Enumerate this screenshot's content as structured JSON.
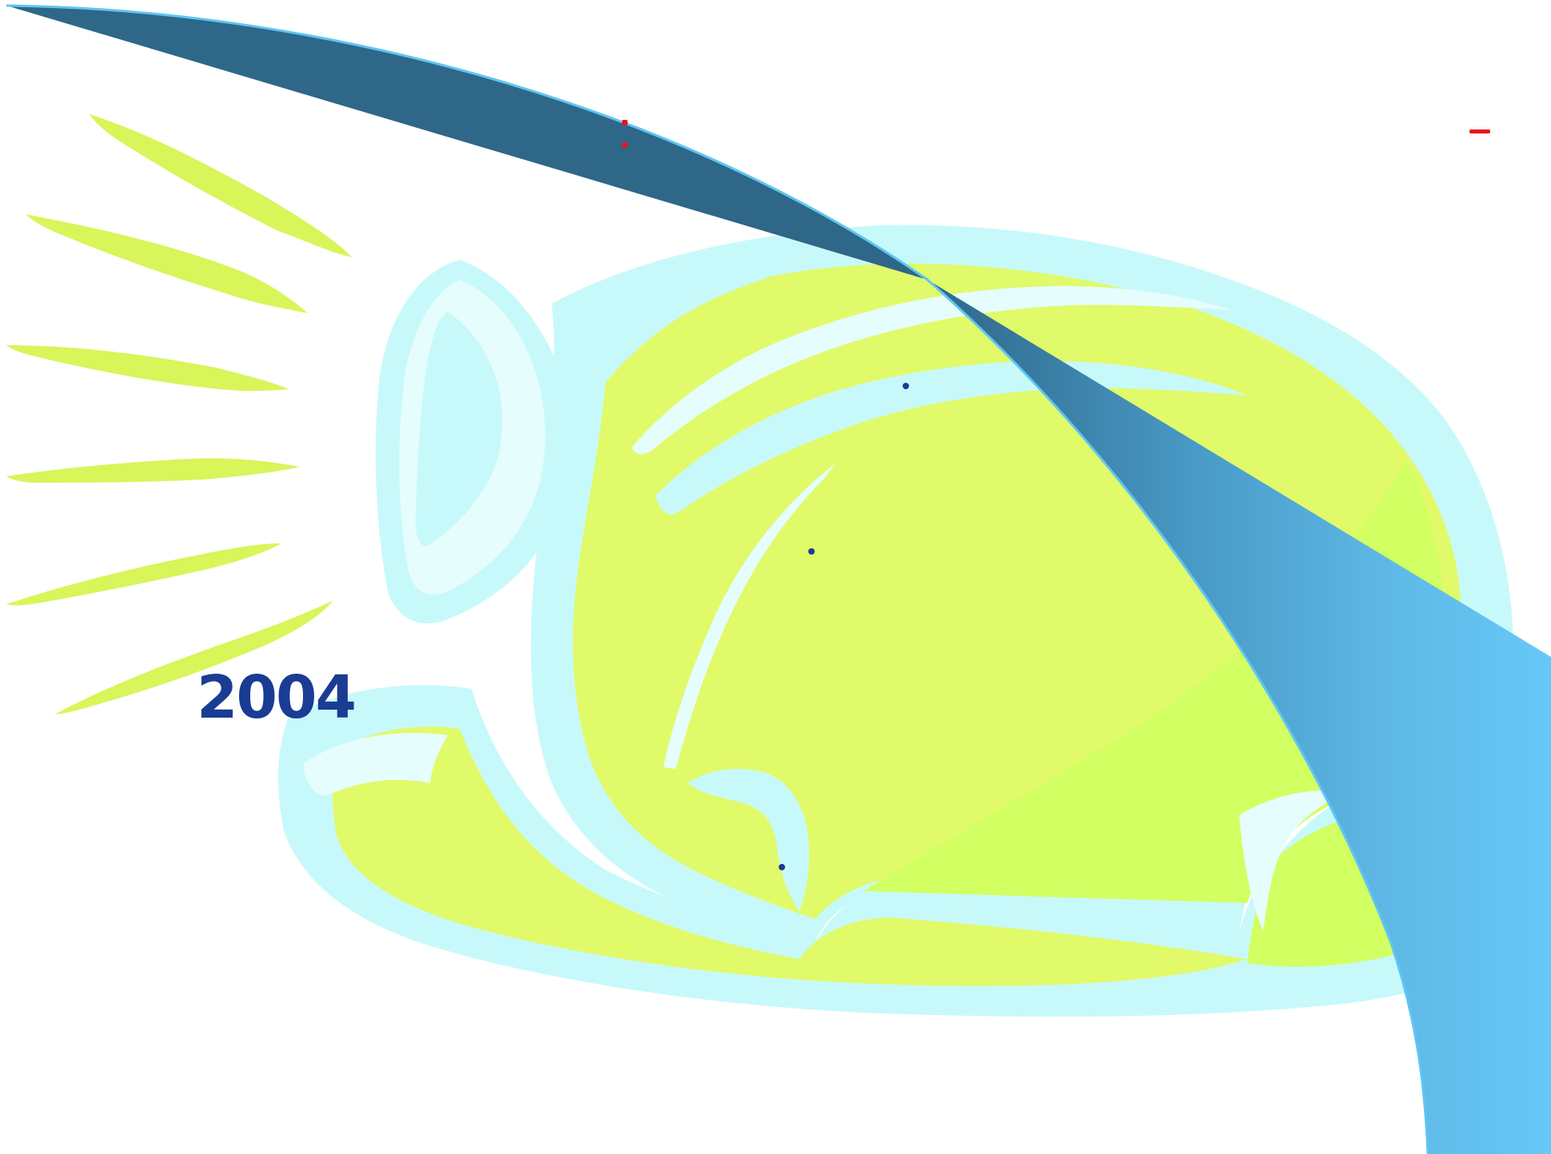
{
  "slide": {
    "year_label": "2004"
  },
  "clipart": {
    "subject": "hard-hat-icon",
    "rays": "light-rays-icon"
  },
  "colors": {
    "background": "#ffffff",
    "ray_yellow_green": "#d8f55a",
    "helmet_yellow_green": "#e0fa6a",
    "helmet_highlight": "#d2ff62",
    "helmet_outline_cyan": "#c8f9fa",
    "helmet_inner_light": "#e6fdfd",
    "swoosh_dark": "#2e6788",
    "swoosh_light": "#66c8f8",
    "arc_line": "#5fc6f2",
    "year_text": "#1a3c94",
    "marker_red": "#e8171a",
    "marker_blue": "#1a3c94"
  }
}
